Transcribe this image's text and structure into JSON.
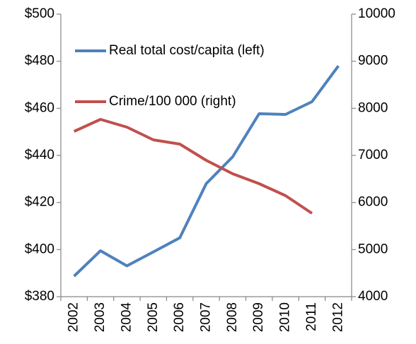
{
  "chart_data": {
    "type": "line",
    "categories": [
      "2002",
      "2003",
      "2004",
      "2005",
      "2006",
      "2007",
      "2008",
      "2009",
      "2010",
      "2011",
      "2012"
    ],
    "series": [
      {
        "name": "Real total cost/capita (left)",
        "color": "#4f81bd",
        "axis": "y",
        "values": [
          388.7,
          399.5,
          393.1,
          399,
          405,
          428,
          439.4,
          457.7,
          457.4,
          462.8,
          478
        ]
      },
      {
        "name": "Crime/100 000 (right)",
        "color": "#c0504d",
        "axis": "y2",
        "values": [
          7510,
          7765,
          7600,
          7330,
          7240,
          6895,
          6610,
          6400,
          6145,
          5770,
          null
        ]
      }
    ],
    "ylim": [
      380,
      500
    ],
    "yticks": [
      {
        "value": 380,
        "label": "$380"
      },
      {
        "value": 400,
        "label": "$400"
      },
      {
        "value": 420,
        "label": "$420"
      },
      {
        "value": 440,
        "label": "$440"
      },
      {
        "value": 460,
        "label": "$460"
      },
      {
        "value": 480,
        "label": "$480"
      },
      {
        "value": 500,
        "label": "$500"
      }
    ],
    "y2lim": [
      4000,
      10000
    ],
    "y2ticks": [
      4000,
      5000,
      6000,
      7000,
      8000,
      9000,
      10000
    ]
  }
}
